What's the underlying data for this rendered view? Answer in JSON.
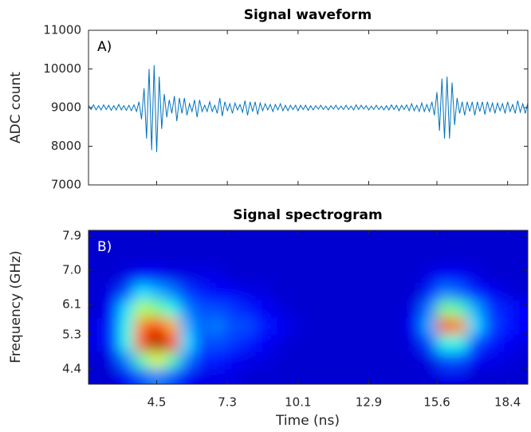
{
  "chart_data": [
    {
      "type": "line",
      "title": "Signal waveform",
      "ylabel": "ADC count",
      "annotation": "A)",
      "color": "#0072bd",
      "x": [
        1.8,
        1.9,
        2.0,
        2.1,
        2.2,
        2.3,
        2.4,
        2.5,
        2.6,
        2.7,
        2.8,
        2.9,
        3.0,
        3.1,
        3.2,
        3.3,
        3.4,
        3.5,
        3.6,
        3.7,
        3.8,
        3.9,
        4.0,
        4.1,
        4.2,
        4.3,
        4.4,
        4.5,
        4.6,
        4.7,
        4.8,
        4.9,
        5.0,
        5.1,
        5.2,
        5.3,
        5.4,
        5.5,
        5.6,
        5.7,
        5.8,
        5.9,
        6.0,
        6.1,
        6.2,
        6.3,
        6.4,
        6.5,
        6.6,
        6.7,
        6.8,
        6.9,
        7.0,
        7.1,
        7.2,
        7.3,
        7.4,
        7.5,
        7.6,
        7.7,
        7.8,
        7.9,
        8.0,
        8.1,
        8.2,
        8.3,
        8.4,
        8.5,
        8.6,
        8.7,
        8.8,
        8.9,
        9.0,
        9.1,
        9.2,
        9.3,
        9.4,
        9.5,
        9.6,
        9.7,
        9.8,
        9.9,
        10.0,
        10.1,
        10.2,
        10.3,
        10.4,
        10.5,
        10.6,
        10.7,
        10.8,
        10.9,
        11.0,
        11.1,
        11.2,
        11.3,
        11.4,
        11.5,
        11.6,
        11.7,
        11.8,
        11.9,
        12.0,
        12.1,
        12.2,
        12.3,
        12.4,
        12.5,
        12.6,
        12.7,
        12.8,
        12.9,
        13.0,
        13.1,
        13.2,
        13.3,
        13.4,
        13.5,
        13.6,
        13.7,
        13.8,
        13.9,
        14.0,
        14.1,
        14.2,
        14.3,
        14.4,
        14.5,
        14.6,
        14.7,
        14.8,
        14.9,
        15.0,
        15.1,
        15.2,
        15.3,
        15.4,
        15.5,
        15.6,
        15.7,
        15.8,
        15.9,
        16.0,
        16.1,
        16.2,
        16.3,
        16.4,
        16.5,
        16.6,
        16.7,
        16.8,
        16.9,
        17.0,
        17.1,
        17.2,
        17.3,
        17.4,
        17.5,
        17.6,
        17.7,
        17.8,
        17.9,
        18.0,
        18.1,
        18.2,
        18.3,
        18.4,
        18.5,
        18.6,
        18.7,
        18.8,
        18.9,
        19.0,
        19.1,
        19.2
      ],
      "values": [
        9060,
        8950,
        9070,
        8940,
        9050,
        8940,
        9070,
        8950,
        9060,
        8930,
        9050,
        8940,
        9080,
        8940,
        9050,
        8930,
        9060,
        8920,
        9070,
        8900,
        9150,
        8700,
        9500,
        8200,
        10000,
        7900,
        10100,
        7850,
        9800,
        8450,
        9350,
        8750,
        9200,
        8850,
        9300,
        8650,
        9250,
        8850,
        9250,
        8800,
        9100,
        8900,
        9200,
        8750,
        9200,
        8900,
        9060,
        8900,
        9150,
        8900,
        9060,
        8850,
        9250,
        8780,
        9150,
        8920,
        9100,
        8850,
        9120,
        8940,
        9080,
        8880,
        9180,
        8800,
        9150,
        8900,
        9150,
        8820,
        9120,
        8920,
        9100,
        8940,
        9080,
        8900,
        9080,
        8940,
        9100,
        8920,
        9060,
        8920,
        9060,
        8950,
        9060,
        8920,
        9060,
        8950,
        9060,
        8930,
        9050,
        8940,
        9050,
        8960,
        9060,
        8950,
        9040,
        8940,
        9050,
        8960,
        9060,
        8950,
        9040,
        8950,
        9060,
        8950,
        9040,
        8940,
        9070,
        8950,
        9060,
        8960,
        9050,
        8940,
        9040,
        8950,
        9060,
        8950,
        9040,
        8940,
        9050,
        8940,
        9070,
        8950,
        9060,
        8920,
        9060,
        8950,
        9070,
        8920,
        9100,
        8920,
        9060,
        8900,
        9120,
        8900,
        9080,
        8900,
        9150,
        8800,
        9400,
        8400,
        9750,
        8200,
        9800,
        8200,
        9650,
        8550,
        9250,
        8850,
        9150,
        8800,
        9150,
        8900,
        9150,
        8800,
        9150,
        8900,
        9150,
        8820,
        9150,
        8900,
        9120,
        8850,
        9120,
        8920,
        9100,
        8850,
        9150,
        8900,
        9080,
        8850,
        9180,
        8880,
        9100,
        8850,
        9120
      ],
      "xlim": [
        1.8,
        19.2
      ],
      "ylim": [
        7000,
        11000
      ],
      "xticks": [
        4.5,
        7.3,
        10.1,
        12.9,
        15.6,
        18.4
      ],
      "yticks": [
        7000,
        8000,
        9000,
        10000,
        11000
      ]
    },
    {
      "type": "heatmap",
      "title": "Signal spectrogram",
      "xlabel": "Time (ns)",
      "ylabel": "Frequency (GHz)",
      "annotation": "B)",
      "colormap": "jet",
      "zlim": [
        0,
        1
      ],
      "x": [
        2.1,
        2.7,
        3.3,
        3.9,
        4.5,
        5.1,
        5.7,
        6.3,
        6.9,
        7.5,
        8.1,
        8.7,
        9.3,
        9.9,
        10.5,
        11.1,
        11.7,
        12.3,
        12.9,
        13.5,
        14.1,
        14.7,
        15.3,
        15.9,
        16.5,
        17.1,
        17.7,
        18.3,
        18.9
      ],
      "y": [
        4.2,
        4.65,
        5.1,
        5.55,
        6.0,
        6.45,
        6.9,
        7.35,
        7.8
      ],
      "z": [
        [
          0.08,
          0.08,
          0.12,
          0.2,
          0.25,
          0.2,
          0.12,
          0.1,
          0.1,
          0.1,
          0.08,
          0.08,
          0.08,
          0.08,
          0.08,
          0.08,
          0.08,
          0.08,
          0.08,
          0.08,
          0.08,
          0.08,
          0.08,
          0.1,
          0.1,
          0.08,
          0.08,
          0.08,
          0.08
        ],
        [
          0.08,
          0.1,
          0.25,
          0.45,
          0.6,
          0.45,
          0.25,
          0.15,
          0.15,
          0.12,
          0.1,
          0.1,
          0.08,
          0.08,
          0.08,
          0.08,
          0.08,
          0.08,
          0.08,
          0.08,
          0.08,
          0.08,
          0.1,
          0.2,
          0.2,
          0.12,
          0.1,
          0.1,
          0.08
        ],
        [
          0.1,
          0.15,
          0.4,
          0.8,
          0.98,
          0.85,
          0.35,
          0.2,
          0.2,
          0.18,
          0.15,
          0.12,
          0.1,
          0.08,
          0.08,
          0.08,
          0.08,
          0.08,
          0.08,
          0.08,
          0.08,
          0.1,
          0.2,
          0.4,
          0.4,
          0.2,
          0.15,
          0.12,
          0.1
        ],
        [
          0.1,
          0.15,
          0.4,
          0.75,
          0.85,
          0.7,
          0.3,
          0.22,
          0.25,
          0.2,
          0.2,
          0.15,
          0.12,
          0.1,
          0.08,
          0.08,
          0.08,
          0.08,
          0.08,
          0.08,
          0.08,
          0.12,
          0.3,
          0.8,
          0.75,
          0.35,
          0.2,
          0.15,
          0.12
        ],
        [
          0.08,
          0.12,
          0.35,
          0.55,
          0.5,
          0.4,
          0.25,
          0.2,
          0.2,
          0.18,
          0.15,
          0.12,
          0.1,
          0.08,
          0.08,
          0.08,
          0.08,
          0.08,
          0.08,
          0.08,
          0.08,
          0.1,
          0.25,
          0.5,
          0.45,
          0.3,
          0.18,
          0.15,
          0.12
        ],
        [
          0.08,
          0.1,
          0.2,
          0.35,
          0.3,
          0.25,
          0.18,
          0.15,
          0.12,
          0.12,
          0.1,
          0.1,
          0.08,
          0.08,
          0.08,
          0.08,
          0.08,
          0.08,
          0.08,
          0.08,
          0.08,
          0.08,
          0.15,
          0.25,
          0.22,
          0.15,
          0.12,
          0.1,
          0.08
        ],
        [
          0.08,
          0.08,
          0.1,
          0.12,
          0.12,
          0.1,
          0.1,
          0.1,
          0.1,
          0.08,
          0.08,
          0.08,
          0.08,
          0.08,
          0.08,
          0.08,
          0.08,
          0.08,
          0.08,
          0.08,
          0.08,
          0.08,
          0.1,
          0.12,
          0.12,
          0.1,
          0.08,
          0.08,
          0.08
        ],
        [
          0.08,
          0.08,
          0.08,
          0.08,
          0.08,
          0.08,
          0.08,
          0.08,
          0.08,
          0.08,
          0.08,
          0.08,
          0.08,
          0.08,
          0.08,
          0.08,
          0.08,
          0.08,
          0.08,
          0.08,
          0.08,
          0.08,
          0.08,
          0.08,
          0.08,
          0.08,
          0.08,
          0.08,
          0.08
        ],
        [
          0.08,
          0.08,
          0.08,
          0.08,
          0.08,
          0.08,
          0.08,
          0.08,
          0.08,
          0.08,
          0.08,
          0.08,
          0.08,
          0.08,
          0.08,
          0.08,
          0.08,
          0.08,
          0.08,
          0.08,
          0.08,
          0.08,
          0.08,
          0.08,
          0.08,
          0.08,
          0.08,
          0.08,
          0.08
        ]
      ],
      "xlim": [
        1.8,
        19.2
      ],
      "ylim": [
        4.0,
        8.05
      ],
      "xticks": [
        4.5,
        7.3,
        10.1,
        12.9,
        15.6,
        18.4
      ],
      "yticks": [
        4.4,
        5.3,
        6.1,
        {
          "value": 7,
          "label": "7.0"
        },
        7.9
      ]
    }
  ]
}
